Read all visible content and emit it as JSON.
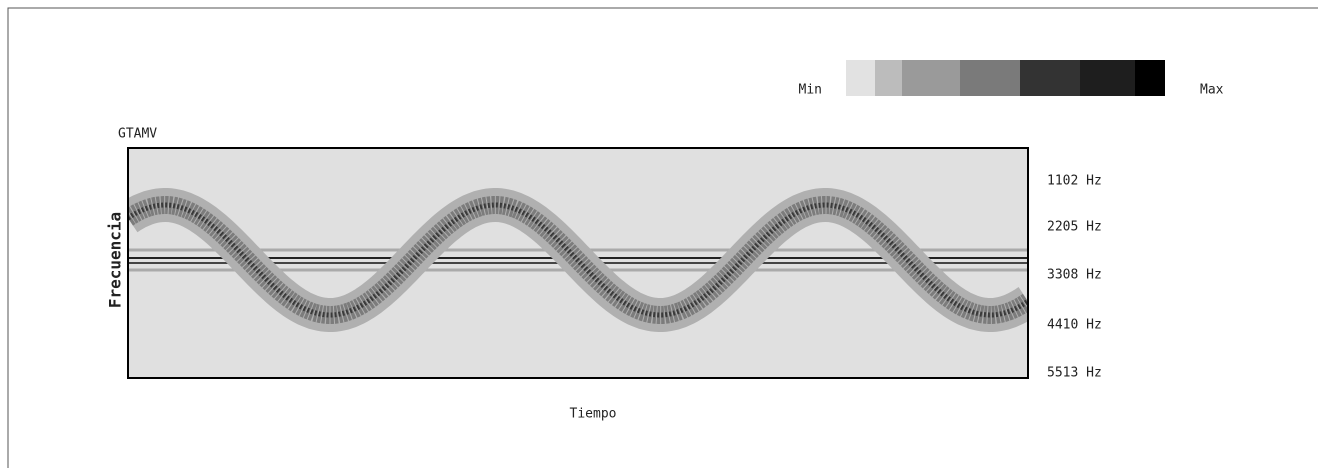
{
  "legend": {
    "min_label": "Min",
    "max_label": "Max"
  },
  "plot": {
    "title": "GTAMV",
    "y_axis_label": "Frecuencia",
    "x_axis_label": "Tiempo",
    "y_tick_labels": [
      "1102 Hz",
      "2205 Hz",
      "3308 Hz",
      "4410 Hz",
      "5513 Hz"
    ]
  }
}
